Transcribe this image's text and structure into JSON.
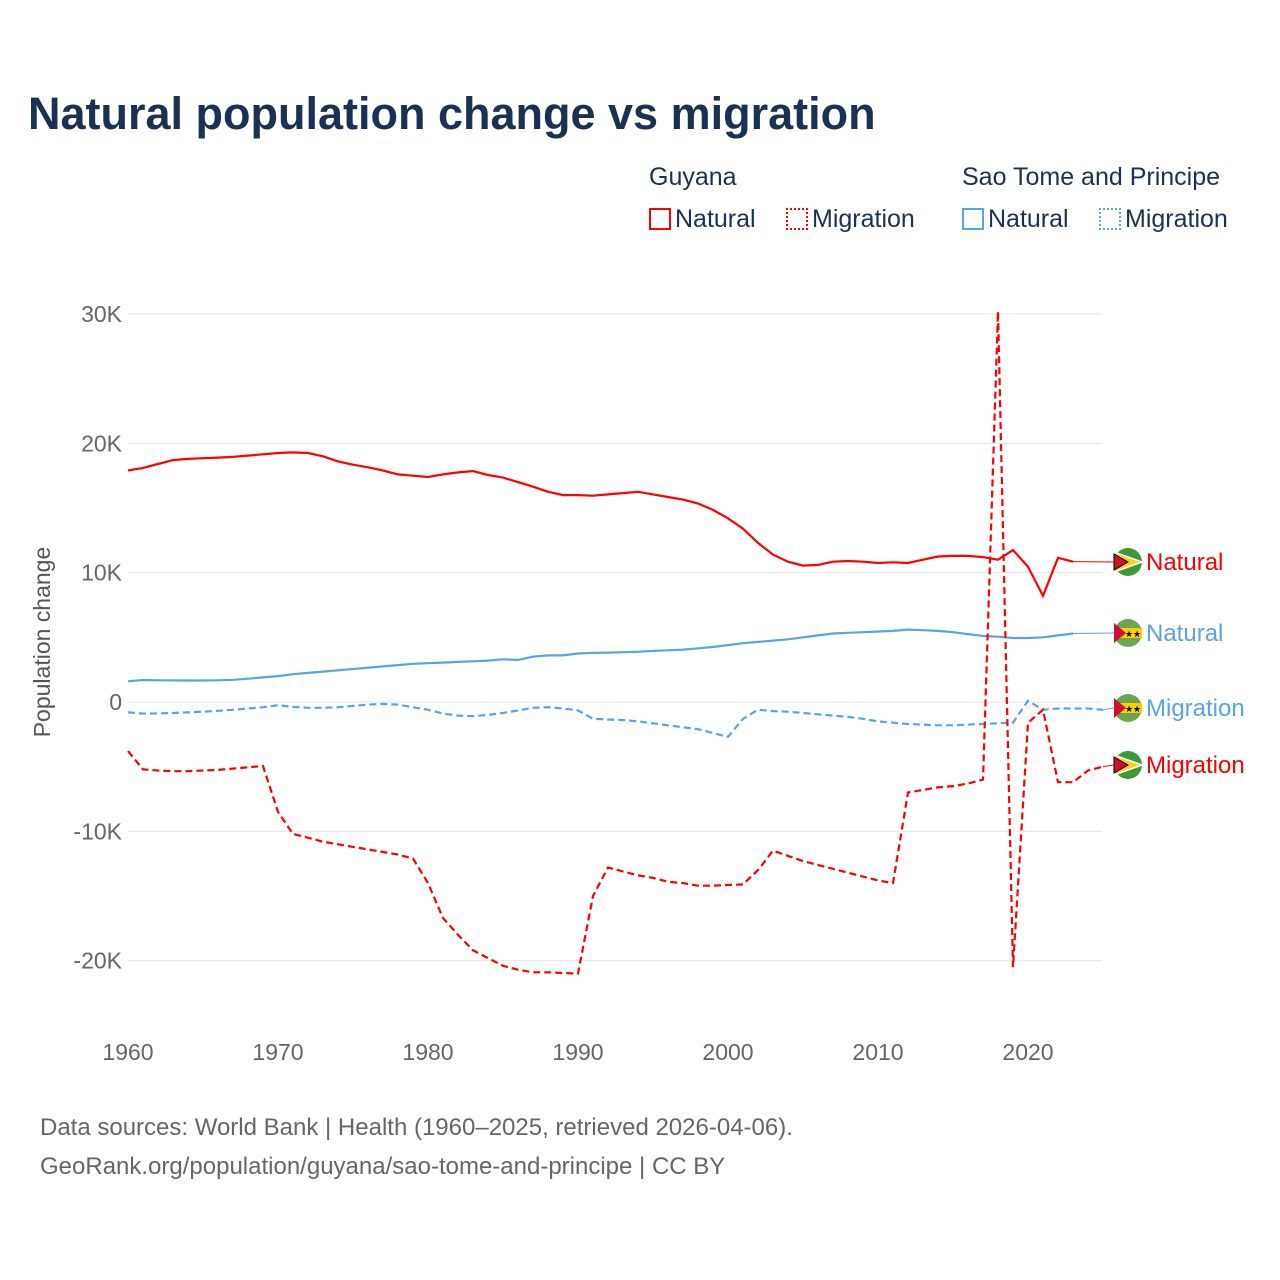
{
  "title": "Natural population change vs migration",
  "legend": {
    "groups": [
      {
        "name": "Guyana",
        "items": [
          "Natural",
          "Migration"
        ]
      },
      {
        "name": "Sao Tome and Principe",
        "items": [
          "Natural",
          "Migration"
        ]
      }
    ]
  },
  "footer": [
    "Data sources: World Bank | Health (1960–2025, retrieved 2026-04-06).",
    "GeoRank.org/population/guyana/sao-tome-and-principe | CC BY"
  ],
  "colors": {
    "guyana": "#ff0000",
    "stp": "#5aa3e8"
  },
  "chart_data": {
    "type": "line",
    "ylabel": "Population change",
    "xlim": [
      1960,
      2025
    ],
    "ylim": [
      -20000,
      30000
    ],
    "xticks": [
      1960,
      1970,
      1980,
      1990,
      2000,
      2010,
      2020
    ],
    "yticks": [
      {
        "v": 30000,
        "l": "30K"
      },
      {
        "v": 20000,
        "l": "20K"
      },
      {
        "v": 10000,
        "l": "10K"
      },
      {
        "v": 0,
        "l": "0"
      },
      {
        "v": -10000,
        "l": "-10K"
      },
      {
        "v": -20000,
        "l": "-20K"
      }
    ],
    "series": [
      {
        "name": "Guyana Natural",
        "label": "Natural",
        "country": "guyana",
        "dash": false,
        "start": 1960,
        "values": [
          17.9,
          18.1,
          18.4,
          18.7,
          18.8,
          18.85,
          18.9,
          18.95,
          19.05,
          19.15,
          19.25,
          19.3,
          19.25,
          19.0,
          18.6,
          18.35,
          18.15,
          17.9,
          17.6,
          17.5,
          17.4,
          17.6,
          17.75,
          17.85,
          17.55,
          17.35,
          17.0,
          16.65,
          16.25,
          16.0,
          16.0,
          15.95,
          16.05,
          16.15,
          16.25,
          16.05,
          15.85,
          15.65,
          15.35,
          14.85,
          14.2,
          13.4,
          12.3,
          11.4,
          10.85,
          10.55,
          10.6,
          10.85,
          10.9,
          10.85,
          10.75,
          10.8,
          10.75,
          11.0,
          11.25,
          11.3,
          11.3,
          11.2,
          11.0,
          11.75,
          10.45,
          8.2,
          11.15,
          10.85
        ]
      },
      {
        "name": "Sao Tome and Principe Natural",
        "label": "Natural",
        "country": "stp",
        "dash": false,
        "start": 1960,
        "values": [
          1.6,
          1.7,
          1.68,
          1.67,
          1.66,
          1.66,
          1.68,
          1.72,
          1.8,
          1.9,
          2.0,
          2.15,
          2.25,
          2.35,
          2.45,
          2.55,
          2.65,
          2.75,
          2.85,
          2.95,
          3.0,
          3.05,
          3.1,
          3.15,
          3.2,
          3.3,
          3.25,
          3.5,
          3.6,
          3.6,
          3.75,
          3.8,
          3.82,
          3.85,
          3.88,
          3.95,
          4.0,
          4.05,
          4.15,
          4.25,
          4.4,
          4.55,
          4.65,
          4.75,
          4.85,
          5.0,
          5.15,
          5.3,
          5.35,
          5.4,
          5.45,
          5.5,
          5.6,
          5.55,
          5.5,
          5.4,
          5.25,
          5.1,
          5.05,
          4.95,
          4.95,
          5.0,
          5.15,
          5.3
        ]
      },
      {
        "name": "Sao Tome and Principe Migration",
        "label": "Migration",
        "country": "stp",
        "dash": true,
        "start": 1960,
        "values": [
          -0.8,
          -0.9,
          -0.88,
          -0.85,
          -0.8,
          -0.75,
          -0.68,
          -0.6,
          -0.5,
          -0.4,
          -0.25,
          -0.38,
          -0.45,
          -0.45,
          -0.4,
          -0.3,
          -0.2,
          -0.15,
          -0.2,
          -0.4,
          -0.6,
          -0.9,
          -1.05,
          -1.1,
          -1.0,
          -0.85,
          -0.65,
          -0.45,
          -0.4,
          -0.5,
          -0.65,
          -1.3,
          -1.35,
          -1.4,
          -1.5,
          -1.65,
          -1.8,
          -1.95,
          -2.1,
          -2.4,
          -2.7,
          -1.3,
          -0.6,
          -0.7,
          -0.75,
          -0.85,
          -0.95,
          -1.05,
          -1.15,
          -1.3,
          -1.5,
          -1.6,
          -1.7,
          -1.75,
          -1.8,
          -1.8,
          -1.75,
          -1.7,
          -1.65,
          -1.6,
          0.1,
          -0.6,
          -0.5,
          -0.5,
          -0.5,
          -0.6
        ]
      },
      {
        "name": "Guyana Migration",
        "label": "Migration",
        "country": "guyana",
        "dash": true,
        "start": 1960,
        "values": [
          -3.8,
          -5.2,
          -5.3,
          -5.35,
          -5.35,
          -5.3,
          -5.25,
          -5.15,
          -5.05,
          -4.95,
          -8.5,
          -10.2,
          -10.5,
          -10.8,
          -11.0,
          -11.2,
          -11.4,
          -11.6,
          -11.8,
          -12.1,
          -14.0,
          -16.7,
          -18.0,
          -19.2,
          -19.8,
          -20.4,
          -20.7,
          -20.9,
          -20.9,
          -20.95,
          -21.0,
          -15.0,
          -12.8,
          -13.1,
          -13.4,
          -13.6,
          -13.9,
          -14.0,
          -14.2,
          -14.2,
          -14.15,
          -14.1,
          -13.0,
          -11.5,
          -11.9,
          -12.3,
          -12.6,
          -12.9,
          -13.2,
          -13.5,
          -13.8,
          -14.0,
          -7.0,
          -6.8,
          -6.6,
          -6.5,
          -6.3,
          -6.0,
          30.2,
          -20.5,
          -1.6,
          -0.6,
          -6.2,
          -6.2,
          -5.3,
          -5.0
        ]
      }
    ]
  }
}
